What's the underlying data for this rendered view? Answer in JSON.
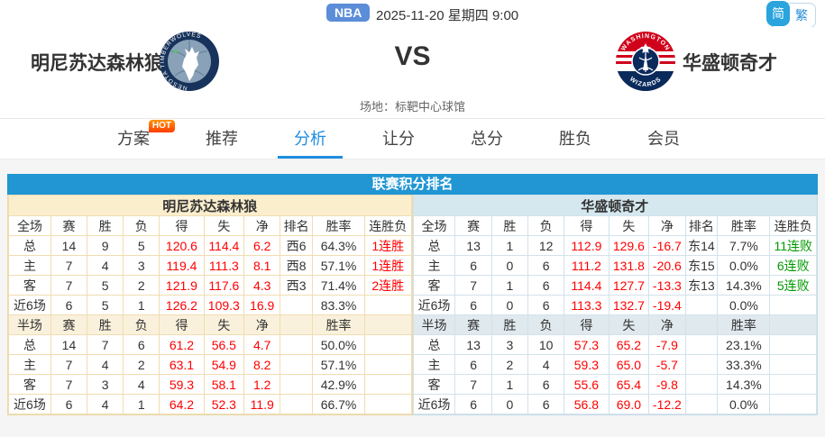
{
  "top": {
    "league_badge": "NBA",
    "datetime": "2025-11-20 星期四 9:00",
    "lang_simplified": "简",
    "lang_traditional": "繁"
  },
  "match": {
    "home_team": "明尼苏达森林狼",
    "away_team": "华盛顿奇才",
    "vs_label": "VS",
    "venue": "场地：标靶中心球馆"
  },
  "nav": {
    "tabs": [
      {
        "label": "方案",
        "badge": "HOT",
        "active": false
      },
      {
        "label": "推荐",
        "active": false
      },
      {
        "label": "分析",
        "active": true
      },
      {
        "label": "让分",
        "active": false
      },
      {
        "label": "总分",
        "active": false
      },
      {
        "label": "胜负",
        "active": false
      },
      {
        "label": "会员",
        "active": false
      }
    ]
  },
  "section_title": "联赛积分排名",
  "styles": {
    "accent_blue": "#2196d3",
    "tab_active_blue": "#1e8ee0",
    "home_panel_bg": "#faeecd",
    "away_panel_bg": "#d5e7ef",
    "stat_red": "#ff0000",
    "streak_win_red": "#ff0000",
    "streak_loss_green": "#009900",
    "hot_badge_orange": "#ff5a00",
    "nba_badge_blue": "#5b8dd9"
  },
  "standings": {
    "left": {
      "team": "明尼苏达森林狼",
      "sections": [
        {
          "kind": "full",
          "header": [
            "全场",
            "赛",
            "胜",
            "负",
            "得",
            "失",
            "净",
            "排名",
            "胜率",
            "连胜负"
          ],
          "rows": [
            [
              "总",
              "14",
              "9",
              "5",
              "120.6",
              "114.4",
              "6.2",
              "西6",
              "64.3%",
              "1连胜"
            ],
            [
              "主",
              "7",
              "4",
              "3",
              "119.4",
              "111.3",
              "8.1",
              "西8",
              "57.1%",
              "1连胜"
            ],
            [
              "客",
              "7",
              "5",
              "2",
              "121.9",
              "117.6",
              "4.3",
              "西3",
              "71.4%",
              "2连胜"
            ],
            [
              "近6场",
              "6",
              "5",
              "1",
              "126.2",
              "109.3",
              "16.9",
              "",
              "83.3%",
              ""
            ]
          ]
        },
        {
          "kind": "half",
          "header": [
            "半场",
            "赛",
            "胜",
            "负",
            "得",
            "失",
            "净",
            "",
            "胜率",
            ""
          ],
          "rows": [
            [
              "总",
              "14",
              "7",
              "6",
              "61.2",
              "56.5",
              "4.7",
              "",
              "50.0%",
              ""
            ],
            [
              "主",
              "7",
              "4",
              "2",
              "63.1",
              "54.9",
              "8.2",
              "",
              "57.1%",
              ""
            ],
            [
              "客",
              "7",
              "3",
              "4",
              "59.3",
              "58.1",
              "1.2",
              "",
              "42.9%",
              ""
            ],
            [
              "近6场",
              "6",
              "4",
              "1",
              "64.2",
              "52.3",
              "11.9",
              "",
              "66.7%",
              ""
            ]
          ]
        }
      ]
    },
    "right": {
      "team": "华盛顿奇才",
      "sections": [
        {
          "kind": "full",
          "header": [
            "全场",
            "赛",
            "胜",
            "负",
            "得",
            "失",
            "净",
            "排名",
            "胜率",
            "连胜负"
          ],
          "rows": [
            [
              "总",
              "13",
              "1",
              "12",
              "112.9",
              "129.6",
              "-16.7",
              "东14",
              "7.7%",
              "11连败"
            ],
            [
              "主",
              "6",
              "0",
              "6",
              "111.2",
              "131.8",
              "-20.6",
              "东15",
              "0.0%",
              "6连败"
            ],
            [
              "客",
              "7",
              "1",
              "6",
              "114.4",
              "127.7",
              "-13.3",
              "东13",
              "14.3%",
              "5连败"
            ],
            [
              "近6场",
              "6",
              "0",
              "6",
              "113.3",
              "132.7",
              "-19.4",
              "",
              "0.0%",
              ""
            ]
          ]
        },
        {
          "kind": "half",
          "header": [
            "半场",
            "赛",
            "胜",
            "负",
            "得",
            "失",
            "净",
            "",
            "胜率",
            ""
          ],
          "rows": [
            [
              "总",
              "13",
              "3",
              "10",
              "57.3",
              "65.2",
              "-7.9",
              "",
              "23.1%",
              ""
            ],
            [
              "主",
              "6",
              "2",
              "4",
              "59.3",
              "65.0",
              "-5.7",
              "",
              "33.3%",
              ""
            ],
            [
              "客",
              "7",
              "1",
              "6",
              "55.6",
              "65.4",
              "-9.8",
              "",
              "14.3%",
              ""
            ],
            [
              "近6场",
              "6",
              "0",
              "6",
              "56.8",
              "69.0",
              "-12.2",
              "",
              "0.0%",
              ""
            ]
          ]
        }
      ]
    },
    "red_value_cols": [
      4,
      5,
      6
    ],
    "streak_col": 9
  }
}
